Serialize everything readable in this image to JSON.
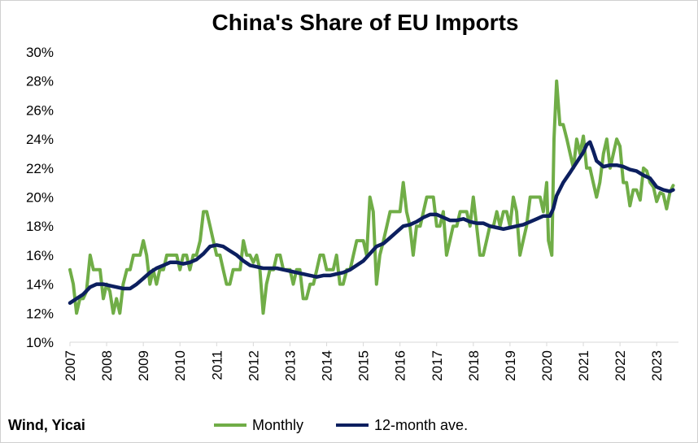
{
  "chart_data": {
    "type": "line",
    "title": "China's Share of EU Imports",
    "source": "Wind, Yicai",
    "y_ticks": [
      "10%",
      "12%",
      "14%",
      "16%",
      "18%",
      "20%",
      "22%",
      "24%",
      "26%",
      "28%",
      "30%"
    ],
    "ylim": [
      10,
      30
    ],
    "x_ticks": [
      "2007",
      "2008",
      "2009",
      "2010",
      "2011",
      "2012",
      "2013",
      "2014",
      "2015",
      "2016",
      "2017",
      "2018",
      "2019",
      "2020",
      "2021",
      "2022",
      "2023"
    ],
    "xlim": [
      2007,
      2023.55
    ],
    "grid": false,
    "legend_position": "bottom",
    "series": [
      {
        "name": "Monthly",
        "color": "#70ad47",
        "points": [
          [
            2007.0,
            15.0
          ],
          [
            2007.09,
            14.0
          ],
          [
            2007.18,
            12.0
          ],
          [
            2007.27,
            13.0
          ],
          [
            2007.36,
            13.0
          ],
          [
            2007.45,
            13.5
          ],
          [
            2007.55,
            16.0
          ],
          [
            2007.64,
            15.0
          ],
          [
            2007.73,
            15.0
          ],
          [
            2007.82,
            15.0
          ],
          [
            2007.91,
            13.0
          ],
          [
            2008.0,
            14.0
          ],
          [
            2008.09,
            13.5
          ],
          [
            2008.18,
            12.0
          ],
          [
            2008.27,
            13.0
          ],
          [
            2008.36,
            12.0
          ],
          [
            2008.45,
            14.0
          ],
          [
            2008.55,
            15.0
          ],
          [
            2008.64,
            15.0
          ],
          [
            2008.73,
            16.0
          ],
          [
            2008.82,
            16.0
          ],
          [
            2008.91,
            16.0
          ],
          [
            2009.0,
            17.0
          ],
          [
            2009.09,
            16.0
          ],
          [
            2009.18,
            14.0
          ],
          [
            2009.27,
            15.0
          ],
          [
            2009.36,
            14.0
          ],
          [
            2009.45,
            15.0
          ],
          [
            2009.55,
            15.0
          ],
          [
            2009.64,
            16.0
          ],
          [
            2009.73,
            16.0
          ],
          [
            2009.82,
            16.0
          ],
          [
            2009.91,
            16.0
          ],
          [
            2010.0,
            15.0
          ],
          [
            2010.09,
            16.0
          ],
          [
            2010.18,
            16.0
          ],
          [
            2010.27,
            15.0
          ],
          [
            2010.36,
            16.0
          ],
          [
            2010.45,
            16.0
          ],
          [
            2010.55,
            17.0
          ],
          [
            2010.64,
            19.0
          ],
          [
            2010.73,
            19.0
          ],
          [
            2010.82,
            18.0
          ],
          [
            2010.91,
            17.0
          ],
          [
            2011.0,
            16.0
          ],
          [
            2011.09,
            16.0
          ],
          [
            2011.18,
            15.0
          ],
          [
            2011.27,
            14.0
          ],
          [
            2011.36,
            14.0
          ],
          [
            2011.45,
            15.0
          ],
          [
            2011.55,
            15.0
          ],
          [
            2011.64,
            15.0
          ],
          [
            2011.73,
            17.0
          ],
          [
            2011.82,
            16.0
          ],
          [
            2011.91,
            16.0
          ],
          [
            2012.0,
            15.5
          ],
          [
            2012.09,
            16.0
          ],
          [
            2012.18,
            15.0
          ],
          [
            2012.27,
            12.0
          ],
          [
            2012.36,
            14.0
          ],
          [
            2012.45,
            15.0
          ],
          [
            2012.55,
            15.0
          ],
          [
            2012.64,
            16.0
          ],
          [
            2012.73,
            16.0
          ],
          [
            2012.82,
            15.0
          ],
          [
            2012.91,
            15.0
          ],
          [
            2013.0,
            15.0
          ],
          [
            2013.09,
            14.0
          ],
          [
            2013.18,
            15.0
          ],
          [
            2013.27,
            15.0
          ],
          [
            2013.36,
            13.0
          ],
          [
            2013.45,
            13.0
          ],
          [
            2013.55,
            14.0
          ],
          [
            2013.64,
            14.0
          ],
          [
            2013.73,
            15.0
          ],
          [
            2013.82,
            16.0
          ],
          [
            2013.91,
            16.0
          ],
          [
            2014.0,
            15.0
          ],
          [
            2014.09,
            15.0
          ],
          [
            2014.18,
            15.0
          ],
          [
            2014.27,
            16.0
          ],
          [
            2014.36,
            14.0
          ],
          [
            2014.45,
            14.0
          ],
          [
            2014.55,
            15.0
          ],
          [
            2014.64,
            15.0
          ],
          [
            2014.73,
            16.0
          ],
          [
            2014.82,
            17.0
          ],
          [
            2014.91,
            17.0
          ],
          [
            2015.0,
            17.0
          ],
          [
            2015.09,
            16.0
          ],
          [
            2015.18,
            20.0
          ],
          [
            2015.27,
            19.0
          ],
          [
            2015.36,
            14.0
          ],
          [
            2015.45,
            16.0
          ],
          [
            2015.55,
            17.0
          ],
          [
            2015.64,
            18.0
          ],
          [
            2015.73,
            19.0
          ],
          [
            2015.82,
            19.0
          ],
          [
            2015.91,
            19.0
          ],
          [
            2016.0,
            19.0
          ],
          [
            2016.09,
            21.0
          ],
          [
            2016.18,
            19.0
          ],
          [
            2016.27,
            18.0
          ],
          [
            2016.36,
            16.0
          ],
          [
            2016.45,
            18.0
          ],
          [
            2016.55,
            18.0
          ],
          [
            2016.64,
            19.0
          ],
          [
            2016.73,
            20.0
          ],
          [
            2016.82,
            20.0
          ],
          [
            2016.91,
            20.0
          ],
          [
            2017.0,
            18.0
          ],
          [
            2017.09,
            18.0
          ],
          [
            2017.18,
            19.0
          ],
          [
            2017.27,
            16.0
          ],
          [
            2017.36,
            17.0
          ],
          [
            2017.45,
            18.0
          ],
          [
            2017.55,
            18.0
          ],
          [
            2017.64,
            19.0
          ],
          [
            2017.73,
            19.0
          ],
          [
            2017.82,
            19.0
          ],
          [
            2017.91,
            18.0
          ],
          [
            2018.0,
            20.0
          ],
          [
            2018.09,
            18.0
          ],
          [
            2018.18,
            16.0
          ],
          [
            2018.27,
            16.0
          ],
          [
            2018.36,
            17.0
          ],
          [
            2018.45,
            18.0
          ],
          [
            2018.55,
            18.0
          ],
          [
            2018.64,
            19.0
          ],
          [
            2018.73,
            18.0
          ],
          [
            2018.82,
            19.0
          ],
          [
            2018.91,
            19.0
          ],
          [
            2019.0,
            18.0
          ],
          [
            2019.09,
            20.0
          ],
          [
            2019.18,
            19.0
          ],
          [
            2019.27,
            16.0
          ],
          [
            2019.36,
            17.0
          ],
          [
            2019.45,
            18.0
          ],
          [
            2019.55,
            20.0
          ],
          [
            2019.64,
            20.0
          ],
          [
            2019.73,
            20.0
          ],
          [
            2019.82,
            20.0
          ],
          [
            2019.91,
            19.0
          ],
          [
            2020.0,
            21.0
          ],
          [
            2020.05,
            17.0
          ],
          [
            2020.14,
            16.0
          ],
          [
            2020.2,
            24.0
          ],
          [
            2020.27,
            28.0
          ],
          [
            2020.36,
            25.0
          ],
          [
            2020.45,
            25.0
          ],
          [
            2020.55,
            24.0
          ],
          [
            2020.64,
            23.0
          ],
          [
            2020.73,
            22.0
          ],
          [
            2020.82,
            24.0
          ],
          [
            2020.91,
            23.0
          ],
          [
            2021.0,
            24.2
          ],
          [
            2021.09,
            22.0
          ],
          [
            2021.18,
            22.0
          ],
          [
            2021.27,
            21.0
          ],
          [
            2021.36,
            20.0
          ],
          [
            2021.45,
            21.0
          ],
          [
            2021.55,
            23.0
          ],
          [
            2021.64,
            24.0
          ],
          [
            2021.73,
            22.0
          ],
          [
            2021.82,
            23.0
          ],
          [
            2021.91,
            24.0
          ],
          [
            2022.0,
            23.5
          ],
          [
            2022.09,
            21.0
          ],
          [
            2022.18,
            21.0
          ],
          [
            2022.27,
            19.4
          ],
          [
            2022.36,
            20.5
          ],
          [
            2022.45,
            20.5
          ],
          [
            2022.55,
            19.8
          ],
          [
            2022.64,
            22.0
          ],
          [
            2022.73,
            21.8
          ],
          [
            2022.82,
            21.0
          ],
          [
            2022.91,
            20.7
          ],
          [
            2023.0,
            19.7
          ],
          [
            2023.09,
            20.3
          ],
          [
            2023.18,
            20.2
          ],
          [
            2023.27,
            19.2
          ],
          [
            2023.36,
            20.3
          ],
          [
            2023.45,
            20.8
          ]
        ]
      },
      {
        "name": "12-month ave.",
        "color": "#0c1f5f",
        "points": [
          [
            2007.0,
            12.7
          ],
          [
            2007.18,
            13.0
          ],
          [
            2007.36,
            13.3
          ],
          [
            2007.55,
            13.8
          ],
          [
            2007.73,
            14.0
          ],
          [
            2007.91,
            14.0
          ],
          [
            2008.09,
            13.9
          ],
          [
            2008.27,
            13.8
          ],
          [
            2008.45,
            13.7
          ],
          [
            2008.64,
            13.7
          ],
          [
            2008.82,
            14.0
          ],
          [
            2009.0,
            14.4
          ],
          [
            2009.18,
            14.8
          ],
          [
            2009.36,
            15.1
          ],
          [
            2009.55,
            15.3
          ],
          [
            2009.73,
            15.5
          ],
          [
            2009.91,
            15.5
          ],
          [
            2010.09,
            15.4
          ],
          [
            2010.27,
            15.5
          ],
          [
            2010.45,
            15.7
          ],
          [
            2010.64,
            16.1
          ],
          [
            2010.82,
            16.6
          ],
          [
            2011.0,
            16.7
          ],
          [
            2011.18,
            16.6
          ],
          [
            2011.36,
            16.3
          ],
          [
            2011.55,
            16.0
          ],
          [
            2011.73,
            15.6
          ],
          [
            2011.91,
            15.3
          ],
          [
            2012.09,
            15.2
          ],
          [
            2012.27,
            15.1
          ],
          [
            2012.45,
            15.1
          ],
          [
            2012.64,
            15.1
          ],
          [
            2012.82,
            15.0
          ],
          [
            2013.0,
            14.9
          ],
          [
            2013.18,
            14.8
          ],
          [
            2013.36,
            14.7
          ],
          [
            2013.55,
            14.6
          ],
          [
            2013.73,
            14.5
          ],
          [
            2013.91,
            14.6
          ],
          [
            2014.09,
            14.6
          ],
          [
            2014.27,
            14.7
          ],
          [
            2014.45,
            14.8
          ],
          [
            2014.64,
            15.0
          ],
          [
            2014.82,
            15.3
          ],
          [
            2015.0,
            15.6
          ],
          [
            2015.18,
            16.1
          ],
          [
            2015.36,
            16.6
          ],
          [
            2015.55,
            16.8
          ],
          [
            2015.73,
            17.2
          ],
          [
            2015.91,
            17.6
          ],
          [
            2016.09,
            18.0
          ],
          [
            2016.27,
            18.1
          ],
          [
            2016.45,
            18.3
          ],
          [
            2016.64,
            18.6
          ],
          [
            2016.82,
            18.8
          ],
          [
            2017.0,
            18.8
          ],
          [
            2017.18,
            18.6
          ],
          [
            2017.36,
            18.4
          ],
          [
            2017.55,
            18.4
          ],
          [
            2017.73,
            18.5
          ],
          [
            2017.91,
            18.3
          ],
          [
            2018.09,
            18.2
          ],
          [
            2018.27,
            18.2
          ],
          [
            2018.45,
            18.0
          ],
          [
            2018.64,
            17.9
          ],
          [
            2018.82,
            17.8
          ],
          [
            2019.0,
            17.9
          ],
          [
            2019.18,
            18.0
          ],
          [
            2019.36,
            18.1
          ],
          [
            2019.55,
            18.3
          ],
          [
            2019.73,
            18.5
          ],
          [
            2019.91,
            18.7
          ],
          [
            2020.09,
            18.7
          ],
          [
            2020.18,
            19.2
          ],
          [
            2020.27,
            20.1
          ],
          [
            2020.45,
            21.0
          ],
          [
            2020.64,
            21.7
          ],
          [
            2020.82,
            22.4
          ],
          [
            2021.0,
            23.1
          ],
          [
            2021.09,
            23.6
          ],
          [
            2021.18,
            23.8
          ],
          [
            2021.27,
            23.2
          ],
          [
            2021.36,
            22.5
          ],
          [
            2021.55,
            22.1
          ],
          [
            2021.73,
            22.2
          ],
          [
            2021.91,
            22.2
          ],
          [
            2022.09,
            22.1
          ],
          [
            2022.27,
            21.9
          ],
          [
            2022.45,
            21.8
          ],
          [
            2022.64,
            21.5
          ],
          [
            2022.82,
            21.3
          ],
          [
            2023.0,
            20.7
          ],
          [
            2023.18,
            20.5
          ],
          [
            2023.36,
            20.4
          ],
          [
            2023.45,
            20.5
          ]
        ]
      }
    ]
  }
}
